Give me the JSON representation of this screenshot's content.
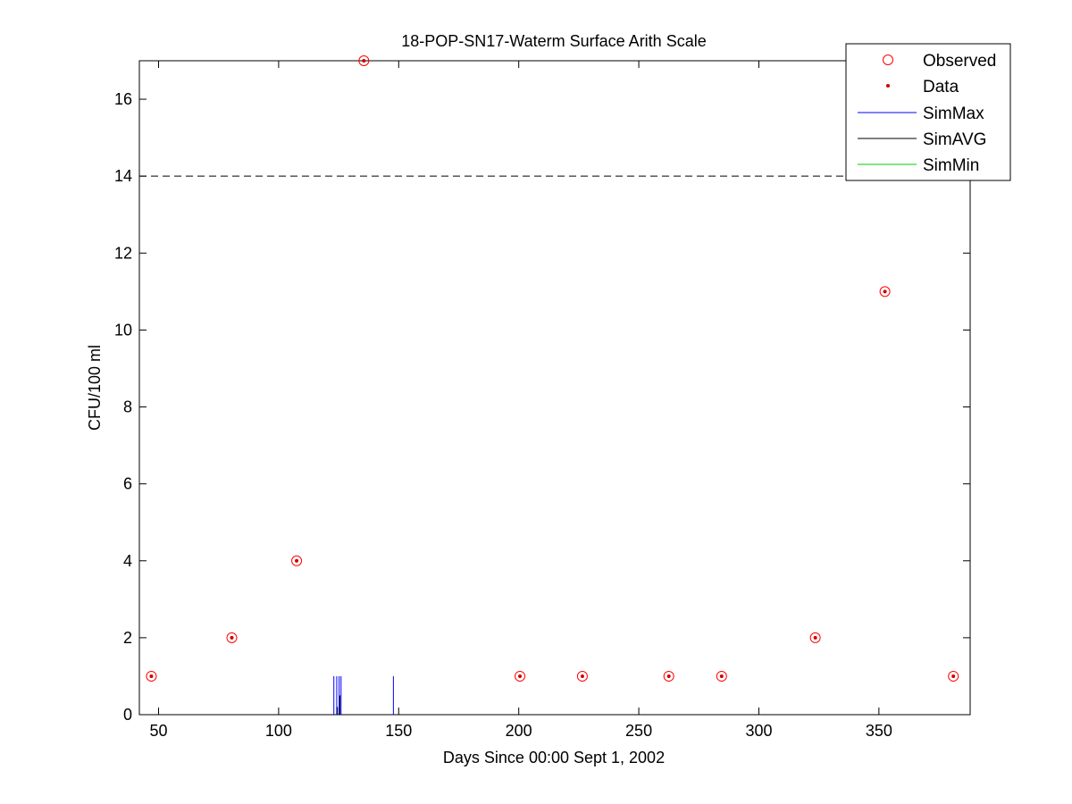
{
  "chart_data": {
    "type": "scatter",
    "title": "18-POP-SN17-Waterm Surface Arith Scale",
    "xlabel": "Days Since 00:00 Sept 1, 2002",
    "ylabel": "CFU/100 ml",
    "xlim": [
      42,
      388
    ],
    "ylim": [
      0,
      17
    ],
    "xticks": [
      50,
      100,
      150,
      200,
      250,
      300,
      350
    ],
    "yticks": [
      0,
      2,
      4,
      6,
      8,
      10,
      12,
      14,
      16
    ],
    "grid": false,
    "legend_position": "top-right",
    "reference_line": {
      "y": 14,
      "style": "dashed",
      "color": "#000000"
    },
    "series": [
      {
        "name": "Observed",
        "marker": "open-circle",
        "color": "#ff0000",
        "x": [
          47,
          80.5,
          107.5,
          135.5,
          200.5,
          226.5,
          262.5,
          284.5,
          323.5,
          352.5,
          381
        ],
        "y": [
          1,
          2,
          4,
          17,
          1,
          1,
          1,
          1,
          2,
          11,
          1
        ]
      },
      {
        "name": "Data",
        "marker": "dot",
        "color": "#cc0000",
        "x": [
          47,
          80.5,
          107.5,
          135.5,
          200.5,
          226.5,
          262.5,
          284.5,
          323.5,
          352.5,
          381
        ],
        "y": [
          1,
          2,
          4,
          17,
          1,
          1,
          1,
          1,
          2,
          11,
          1
        ]
      },
      {
        "name": "SimMax",
        "style": "vertical-spikes",
        "color": "#0000ff",
        "spikes": [
          {
            "x": 123,
            "y": 1
          },
          {
            "x": 124.2,
            "y": 1
          },
          {
            "x": 125.2,
            "y": 1
          },
          {
            "x": 126,
            "y": 1
          },
          {
            "x": 147.8,
            "y": 1
          }
        ]
      },
      {
        "name": "SimAVG",
        "style": "vertical-spikes",
        "color": "#000000",
        "spikes": [
          {
            "x": 125.5,
            "y": 0.5
          },
          {
            "x": 124.5,
            "y": 0.2
          }
        ]
      },
      {
        "name": "SimMin",
        "style": "line",
        "color": "#00cc00",
        "spikes": []
      }
    ]
  }
}
